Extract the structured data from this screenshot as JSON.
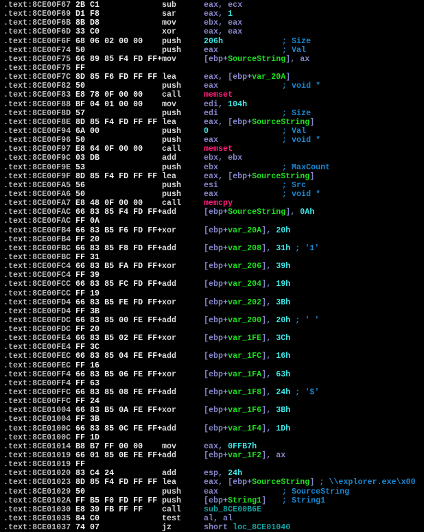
{
  "colors": {
    "background": "#000000",
    "address": "#bdbdbd",
    "bytes": "#f2f2f2",
    "mnemonic": "#d8d8d8",
    "register": "#8585c8",
    "variable": "#1ee01e",
    "immediate": "#3fe6e6",
    "import_function": "#ff1f7a",
    "code_reference": "#13a3a3",
    "comment": "#1a86d0"
  },
  "lines": [
    {
      "addr": ".text:8CE00F67",
      "bytes": "2B C1",
      "mnem": "sub",
      "ops": [
        [
          "eax, ecx",
          "reg"
        ]
      ],
      "cmt": ""
    },
    {
      "addr": ".text:8CE00F69",
      "bytes": "D1 F8",
      "mnem": "sar",
      "ops": [
        [
          "eax, ",
          "reg"
        ],
        [
          "1",
          "imm"
        ]
      ],
      "cmt": ""
    },
    {
      "addr": ".text:8CE00F6B",
      "bytes": "8B D8",
      "mnem": "mov",
      "ops": [
        [
          "ebx, eax",
          "reg"
        ]
      ],
      "cmt": ""
    },
    {
      "addr": ".text:8CE00F6D",
      "bytes": "33 C0",
      "mnem": "xor",
      "ops": [
        [
          "eax, eax",
          "reg"
        ]
      ],
      "cmt": ""
    },
    {
      "addr": ".text:8CE00F6F",
      "bytes": "68 06 02 00 00",
      "mnem": "push",
      "ops": [
        [
          "206h",
          "imm"
        ]
      ],
      "cmt": "; Size"
    },
    {
      "addr": ".text:8CE00F74",
      "bytes": "50",
      "mnem": "push",
      "ops": [
        [
          "eax",
          "reg"
        ]
      ],
      "cmt": "; Val"
    },
    {
      "addr": ".text:8CE00F75",
      "bytes": "66 89 85 F4 FD FF+",
      "mnem": "mov",
      "ops": [
        [
          "[ebp+",
          "reg"
        ],
        [
          "SourceString",
          "var"
        ],
        [
          "], ax",
          "reg"
        ]
      ],
      "cmt": ""
    },
    {
      "addr": ".text:8CE00F75",
      "bytes": "FF",
      "mnem": "",
      "ops": [],
      "cmt": ""
    },
    {
      "addr": ".text:8CE00F7C",
      "bytes": "8D 85 F6 FD FF FF",
      "mnem": "lea",
      "ops": [
        [
          "eax, [ebp+",
          "reg"
        ],
        [
          "var_20A",
          "var"
        ],
        [
          "]",
          "reg"
        ]
      ],
      "cmt": ""
    },
    {
      "addr": ".text:8CE00F82",
      "bytes": "50",
      "mnem": "push",
      "ops": [
        [
          "eax",
          "reg"
        ]
      ],
      "cmt": "; void *"
    },
    {
      "addr": ".text:8CE00F83",
      "bytes": "E8 78 0F 00 00",
      "mnem": "call",
      "ops": [
        [
          "memset",
          "fn"
        ]
      ],
      "cmt": ""
    },
    {
      "addr": ".text:8CE00F88",
      "bytes": "BF 04 01 00 00",
      "mnem": "mov",
      "ops": [
        [
          "edi, ",
          "reg"
        ],
        [
          "104h",
          "imm"
        ]
      ],
      "cmt": ""
    },
    {
      "addr": ".text:8CE00F8D",
      "bytes": "57",
      "mnem": "push",
      "ops": [
        [
          "edi",
          "reg"
        ]
      ],
      "cmt": "; Size"
    },
    {
      "addr": ".text:8CE00F8E",
      "bytes": "8D 85 F4 FD FF FF",
      "mnem": "lea",
      "ops": [
        [
          "eax, [ebp+",
          "reg"
        ],
        [
          "SourceString",
          "var"
        ],
        [
          "]",
          "reg"
        ]
      ],
      "cmt": ""
    },
    {
      "addr": ".text:8CE00F94",
      "bytes": "6A 00",
      "mnem": "push",
      "ops": [
        [
          "0",
          "imm"
        ]
      ],
      "cmt": "; Val"
    },
    {
      "addr": ".text:8CE00F96",
      "bytes": "50",
      "mnem": "push",
      "ops": [
        [
          "eax",
          "reg"
        ]
      ],
      "cmt": "; void *"
    },
    {
      "addr": ".text:8CE00F97",
      "bytes": "E8 64 0F 00 00",
      "mnem": "call",
      "ops": [
        [
          "memset",
          "fn"
        ]
      ],
      "cmt": ""
    },
    {
      "addr": ".text:8CE00F9C",
      "bytes": "03 DB",
      "mnem": "add",
      "ops": [
        [
          "ebx, ebx",
          "reg"
        ]
      ],
      "cmt": ""
    },
    {
      "addr": ".text:8CE00F9E",
      "bytes": "53",
      "mnem": "push",
      "ops": [
        [
          "ebx",
          "reg"
        ]
      ],
      "cmt": "; MaxCount"
    },
    {
      "addr": ".text:8CE00F9F",
      "bytes": "8D 85 F4 FD FF FF",
      "mnem": "lea",
      "ops": [
        [
          "eax, [ebp+",
          "reg"
        ],
        [
          "SourceString",
          "var"
        ],
        [
          "]",
          "reg"
        ]
      ],
      "cmt": ""
    },
    {
      "addr": ".text:8CE00FA5",
      "bytes": "56",
      "mnem": "push",
      "ops": [
        [
          "esi",
          "reg"
        ]
      ],
      "cmt": "; Src"
    },
    {
      "addr": ".text:8CE00FA6",
      "bytes": "50",
      "mnem": "push",
      "ops": [
        [
          "eax",
          "reg"
        ]
      ],
      "cmt": "; void *"
    },
    {
      "addr": ".text:8CE00FA7",
      "bytes": "E8 48 0F 00 00",
      "mnem": "call",
      "ops": [
        [
          "memcpy",
          "fn"
        ]
      ],
      "cmt": ""
    },
    {
      "addr": ".text:8CE00FAC",
      "bytes": "66 83 85 F4 FD FF+",
      "mnem": "add",
      "ops": [
        [
          "[ebp+",
          "reg"
        ],
        [
          "SourceString",
          "var"
        ],
        [
          "], ",
          "reg"
        ],
        [
          "0Ah",
          "imm"
        ]
      ],
      "cmt": ""
    },
    {
      "addr": ".text:8CE00FAC",
      "bytes": "FF 0A",
      "mnem": "",
      "ops": [],
      "cmt": ""
    },
    {
      "addr": ".text:8CE00FB4",
      "bytes": "66 83 B5 F6 FD FF+",
      "mnem": "xor",
      "ops": [
        [
          "[ebp+",
          "reg"
        ],
        [
          "var_20A",
          "var"
        ],
        [
          "], ",
          "reg"
        ],
        [
          "20h",
          "imm"
        ]
      ],
      "cmt": ""
    },
    {
      "addr": ".text:8CE00FB4",
      "bytes": "FF 20",
      "mnem": "",
      "ops": [],
      "cmt": ""
    },
    {
      "addr": ".text:8CE00FBC",
      "bytes": "66 83 85 F8 FD FF+",
      "mnem": "add",
      "ops": [
        [
          "[ebp+",
          "reg"
        ],
        [
          "var_208",
          "var"
        ],
        [
          "], ",
          "reg"
        ],
        [
          "31h",
          "imm"
        ],
        [
          " ; '1'",
          "cmt"
        ]
      ],
      "cmt": ""
    },
    {
      "addr": ".text:8CE00FBC",
      "bytes": "FF 31",
      "mnem": "",
      "ops": [],
      "cmt": ""
    },
    {
      "addr": ".text:8CE00FC4",
      "bytes": "66 83 B5 FA FD FF+",
      "mnem": "xor",
      "ops": [
        [
          "[ebp+",
          "reg"
        ],
        [
          "var_206",
          "var"
        ],
        [
          "], ",
          "reg"
        ],
        [
          "39h",
          "imm"
        ]
      ],
      "cmt": ""
    },
    {
      "addr": ".text:8CE00FC4",
      "bytes": "FF 39",
      "mnem": "",
      "ops": [],
      "cmt": ""
    },
    {
      "addr": ".text:8CE00FCC",
      "bytes": "66 83 85 FC FD FF+",
      "mnem": "add",
      "ops": [
        [
          "[ebp+",
          "reg"
        ],
        [
          "var_204",
          "var"
        ],
        [
          "], ",
          "reg"
        ],
        [
          "19h",
          "imm"
        ]
      ],
      "cmt": ""
    },
    {
      "addr": ".text:8CE00FCC",
      "bytes": "FF 19",
      "mnem": "",
      "ops": [],
      "cmt": ""
    },
    {
      "addr": ".text:8CE00FD4",
      "bytes": "66 83 B5 FE FD FF+",
      "mnem": "xor",
      "ops": [
        [
          "[ebp+",
          "reg"
        ],
        [
          "var_202",
          "var"
        ],
        [
          "], ",
          "reg"
        ],
        [
          "3Bh",
          "imm"
        ]
      ],
      "cmt": ""
    },
    {
      "addr": ".text:8CE00FD4",
      "bytes": "FF 3B",
      "mnem": "",
      "ops": [],
      "cmt": ""
    },
    {
      "addr": ".text:8CE00FDC",
      "bytes": "66 83 85 00 FE FF+",
      "mnem": "add",
      "ops": [
        [
          "[ebp+",
          "reg"
        ],
        [
          "var_200",
          "var"
        ],
        [
          "], ",
          "reg"
        ],
        [
          "20h",
          "imm"
        ],
        [
          " ; ' '",
          "cmt"
        ]
      ],
      "cmt": ""
    },
    {
      "addr": ".text:8CE00FDC",
      "bytes": "FF 20",
      "mnem": "",
      "ops": [],
      "cmt": ""
    },
    {
      "addr": ".text:8CE00FE4",
      "bytes": "66 83 B5 02 FE FF+",
      "mnem": "xor",
      "ops": [
        [
          "[ebp+",
          "reg"
        ],
        [
          "var_1FE",
          "var"
        ],
        [
          "], ",
          "reg"
        ],
        [
          "3Ch",
          "imm"
        ]
      ],
      "cmt": ""
    },
    {
      "addr": ".text:8CE00FE4",
      "bytes": "FF 3C",
      "mnem": "",
      "ops": [],
      "cmt": ""
    },
    {
      "addr": ".text:8CE00FEC",
      "bytes": "66 83 85 04 FE FF+",
      "mnem": "add",
      "ops": [
        [
          "[ebp+",
          "reg"
        ],
        [
          "var_1FC",
          "var"
        ],
        [
          "], ",
          "reg"
        ],
        [
          "16h",
          "imm"
        ]
      ],
      "cmt": ""
    },
    {
      "addr": ".text:8CE00FEC",
      "bytes": "FF 16",
      "mnem": "",
      "ops": [],
      "cmt": ""
    },
    {
      "addr": ".text:8CE00FF4",
      "bytes": "66 83 B5 06 FE FF+",
      "mnem": "xor",
      "ops": [
        [
          "[ebp+",
          "reg"
        ],
        [
          "var_1FA",
          "var"
        ],
        [
          "], ",
          "reg"
        ],
        [
          "63h",
          "imm"
        ]
      ],
      "cmt": ""
    },
    {
      "addr": ".text:8CE00FF4",
      "bytes": "FF 63",
      "mnem": "",
      "ops": [],
      "cmt": ""
    },
    {
      "addr": ".text:8CE00FFC",
      "bytes": "66 83 85 08 FE FF+",
      "mnem": "add",
      "ops": [
        [
          "[ebp+",
          "reg"
        ],
        [
          "var_1F8",
          "var"
        ],
        [
          "], ",
          "reg"
        ],
        [
          "24h",
          "imm"
        ],
        [
          " ; '$'",
          "cmt"
        ]
      ],
      "cmt": ""
    },
    {
      "addr": ".text:8CE00FFC",
      "bytes": "FF 24",
      "mnem": "",
      "ops": [],
      "cmt": ""
    },
    {
      "addr": ".text:8CE01004",
      "bytes": "66 83 B5 0A FE FF+",
      "mnem": "xor",
      "ops": [
        [
          "[ebp+",
          "reg"
        ],
        [
          "var_1F6",
          "var"
        ],
        [
          "], ",
          "reg"
        ],
        [
          "3Bh",
          "imm"
        ]
      ],
      "cmt": ""
    },
    {
      "addr": ".text:8CE01004",
      "bytes": "FF 3B",
      "mnem": "",
      "ops": [],
      "cmt": ""
    },
    {
      "addr": ".text:8CE0100C",
      "bytes": "66 83 85 0C FE FF+",
      "mnem": "add",
      "ops": [
        [
          "[ebp+",
          "reg"
        ],
        [
          "var_1F4",
          "var"
        ],
        [
          "], ",
          "reg"
        ],
        [
          "1Dh",
          "imm"
        ]
      ],
      "cmt": ""
    },
    {
      "addr": ".text:8CE0100C",
      "bytes": "FF 1D",
      "mnem": "",
      "ops": [],
      "cmt": ""
    },
    {
      "addr": ".text:8CE01014",
      "bytes": "B8 B7 FF 00 00",
      "mnem": "mov",
      "ops": [
        [
          "eax, ",
          "reg"
        ],
        [
          "0FFB7h",
          "imm"
        ]
      ],
      "cmt": ""
    },
    {
      "addr": ".text:8CE01019",
      "bytes": "66 01 85 0E FE FF+",
      "mnem": "add",
      "ops": [
        [
          "[ebp+",
          "reg"
        ],
        [
          "var_1F2",
          "var"
        ],
        [
          "], ax",
          "reg"
        ]
      ],
      "cmt": ""
    },
    {
      "addr": ".text:8CE01019",
      "bytes": "FF",
      "mnem": "",
      "ops": [],
      "cmt": ""
    },
    {
      "addr": ".text:8CE01020",
      "bytes": "83 C4 24",
      "mnem": "add",
      "ops": [
        [
          "esp, ",
          "reg"
        ],
        [
          "24h",
          "imm"
        ]
      ],
      "cmt": ""
    },
    {
      "addr": ".text:8CE01023",
      "bytes": "8D 85 F4 FD FF FF",
      "mnem": "lea",
      "ops": [
        [
          "eax, [ebp+",
          "reg"
        ],
        [
          "SourceString",
          "var"
        ],
        [
          "]",
          "reg"
        ],
        [
          " ; \\\\explorer.exe\\x00",
          "cmt"
        ]
      ],
      "cmt": ""
    },
    {
      "addr": ".text:8CE01029",
      "bytes": "50",
      "mnem": "push",
      "ops": [
        [
          "eax",
          "reg"
        ]
      ],
      "cmt": "; SourceString"
    },
    {
      "addr": ".text:8CE0102A",
      "bytes": "FF B5 F0 FD FF FF",
      "mnem": "push",
      "ops": [
        [
          "[ebp+",
          "reg"
        ],
        [
          "String1",
          "var"
        ],
        [
          "]",
          "reg"
        ]
      ],
      "cmt": "; String1"
    },
    {
      "addr": ".text:8CE01030",
      "bytes": "E8 39 FB FF FF",
      "mnem": "call",
      "ops": [
        [
          "sub_8CE00B6E",
          "sub"
        ]
      ],
      "cmt": ""
    },
    {
      "addr": ".text:8CE01035",
      "bytes": "84 C0",
      "mnem": "test",
      "ops": [
        [
          "al, al",
          "reg"
        ]
      ],
      "cmt": ""
    },
    {
      "addr": ".text:8CE01037",
      "bytes": "74 07",
      "mnem": "jz",
      "ops": [
        [
          "short ",
          "reg"
        ],
        [
          "loc_8CE01040",
          "sub"
        ]
      ],
      "cmt": ""
    }
  ]
}
